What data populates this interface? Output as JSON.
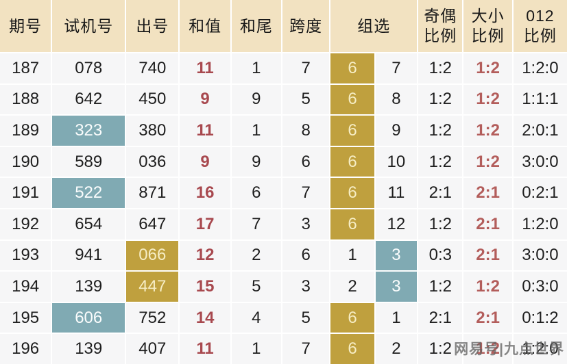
{
  "header": {
    "period": "期号",
    "test": "试机号",
    "draw": "出号",
    "sum": "和值",
    "sum_tail": "和尾",
    "span": "跨度",
    "group": "组选",
    "odd_even_l1": "奇偶",
    "odd_even_l2": "比例",
    "big_small_l1": "大小",
    "big_small_l2": "比例",
    "ratio012_l1": "012",
    "ratio012_l2": "比例"
  },
  "watermark": "网易号|九点世界",
  "colors": {
    "header_bg": "#f2e2c1",
    "cell_bg": "#f6f6f7",
    "gold_highlight": "#bfa03e",
    "teal_highlight": "#80aab3",
    "red_sum": "#a8494f",
    "red_ratio": "#b35d5b"
  },
  "chart_data": {
    "type": "table",
    "title": "",
    "columns": [
      "期号",
      "试机号",
      "出号",
      "和值",
      "和尾",
      "跨度",
      "组选",
      "组选",
      "奇偶比例",
      "大小比例",
      "012比例"
    ],
    "rows": [
      {
        "period": "187",
        "test": "078",
        "draw": "740",
        "sum": "11",
        "tail": "1",
        "span": "7",
        "group6": "6",
        "group3": "7",
        "odd_even": "1:2",
        "big_small": "1:2",
        "r012": "1:2:0",
        "hl": {
          "group6": "gold"
        }
      },
      {
        "period": "188",
        "test": "642",
        "draw": "450",
        "sum": "9",
        "tail": "9",
        "span": "5",
        "group6": "6",
        "group3": "8",
        "odd_even": "1:2",
        "big_small": "1:2",
        "r012": "1:1:1",
        "hl": {
          "group6": "gold"
        }
      },
      {
        "period": "189",
        "test": "323",
        "draw": "380",
        "sum": "11",
        "tail": "1",
        "span": "8",
        "group6": "6",
        "group3": "9",
        "odd_even": "1:2",
        "big_small": "1:2",
        "r012": "2:0:1",
        "hl": {
          "test": "teal",
          "group6": "gold"
        }
      },
      {
        "period": "190",
        "test": "589",
        "draw": "036",
        "sum": "9",
        "tail": "9",
        "span": "6",
        "group6": "6",
        "group3": "10",
        "odd_even": "1:2",
        "big_small": "1:2",
        "r012": "3:0:0",
        "hl": {
          "group6": "gold"
        }
      },
      {
        "period": "191",
        "test": "522",
        "draw": "871",
        "sum": "16",
        "tail": "6",
        "span": "7",
        "group6": "6",
        "group3": "11",
        "odd_even": "2:1",
        "big_small": "2:1",
        "r012": "0:2:1",
        "hl": {
          "test": "teal",
          "group6": "gold"
        }
      },
      {
        "period": "192",
        "test": "654",
        "draw": "647",
        "sum": "17",
        "tail": "7",
        "span": "3",
        "group6": "6",
        "group3": "12",
        "odd_even": "1:2",
        "big_small": "2:1",
        "r012": "1:2:0",
        "hl": {
          "group6": "gold"
        }
      },
      {
        "period": "193",
        "test": "941",
        "draw": "066",
        "sum": "12",
        "tail": "2",
        "span": "6",
        "group6": "1",
        "group3": "3",
        "odd_even": "0:3",
        "big_small": "2:1",
        "r012": "3:0:0",
        "hl": {
          "draw": "gold",
          "group3": "teal"
        }
      },
      {
        "period": "194",
        "test": "139",
        "draw": "447",
        "sum": "15",
        "tail": "5",
        "span": "3",
        "group6": "2",
        "group3": "3",
        "odd_even": "1:2",
        "big_small": "1:2",
        "r012": "0:3:0",
        "hl": {
          "draw": "gold",
          "group3": "teal"
        }
      },
      {
        "period": "195",
        "test": "606",
        "draw": "752",
        "sum": "14",
        "tail": "4",
        "span": "5",
        "group6": "6",
        "group3": "1",
        "odd_even": "2:1",
        "big_small": "2:1",
        "r012": "0:1:2",
        "hl": {
          "test": "teal",
          "group6": "gold"
        }
      },
      {
        "period": "196",
        "test": "139",
        "draw": "407",
        "sum": "11",
        "tail": "1",
        "span": "7",
        "group6": "6",
        "group3": "2",
        "odd_even": "1:2",
        "big_small": "1:2",
        "r012": "1:2:0",
        "hl": {
          "group6": "gold"
        }
      }
    ]
  }
}
